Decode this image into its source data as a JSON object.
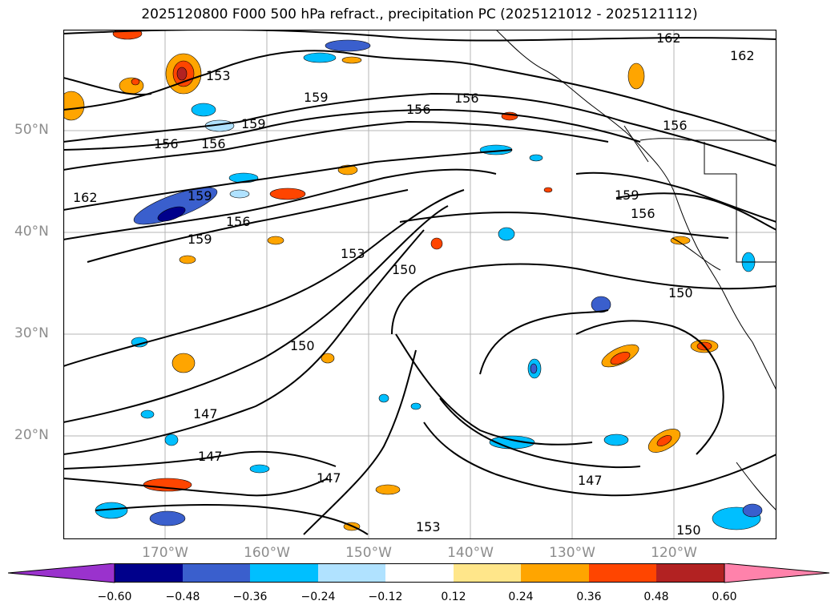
{
  "title": "2025120800 F000 500 hPa refract., precipitation PC (2025121012 - 2025121112)",
  "map": {
    "lat_labels": [
      "50°N",
      "40°N",
      "30°N",
      "20°N"
    ],
    "lon_labels": [
      "170°W",
      "160°W",
      "150°W",
      "140°W",
      "130°W",
      "120°W"
    ],
    "contour_labels": [
      "162",
      "162",
      "162",
      "159",
      "159",
      "159",
      "159",
      "159",
      "156",
      "156",
      "156",
      "156",
      "156",
      "156",
      "156",
      "153",
      "153",
      "153",
      "150",
      "150",
      "150",
      "150",
      "147",
      "147",
      "147",
      "147"
    ]
  },
  "colorbar": {
    "ticks": [
      "−0.60",
      "−0.48",
      "−0.36",
      "−0.24",
      "−0.12",
      "0.12",
      "0.24",
      "0.36",
      "0.48",
      "0.60"
    ],
    "colors": [
      "#9a32cd",
      "#00008b",
      "#3a5fcd",
      "#00bfff",
      "#b0e2ff",
      "#ffffff",
      "#ffe68a",
      "#ffa500",
      "#ff4500",
      "#b22222",
      "#ff82ab"
    ]
  }
}
